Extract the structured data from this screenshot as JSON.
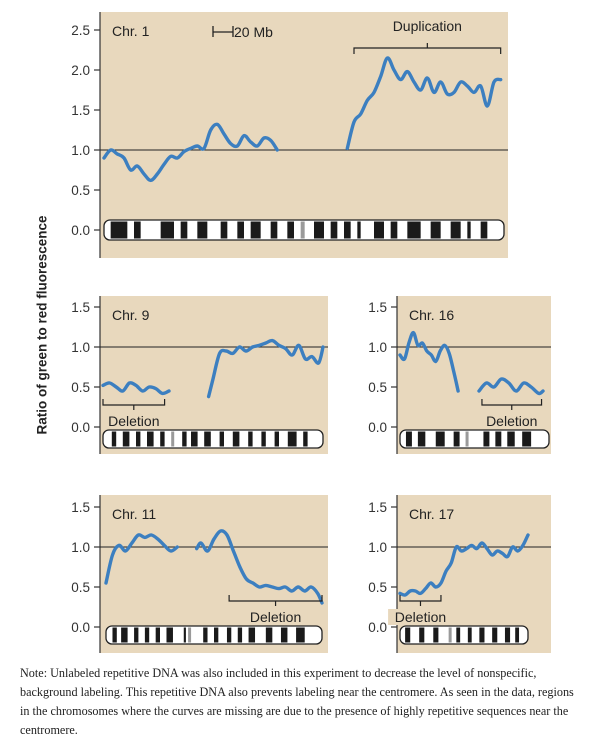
{
  "figure": {
    "ylabel": "Ratio of green to red fluorescence",
    "note": "Note: Unlabeled repetitive DNA was also included in this experiment to decrease the level of nonspecific, background labeling. This repetitive DNA also prevents labeling near the centromere. As seen in the data, regions in the chromosomes where the curves are missing are due to the presence of highly repetitive sequences near the centromere.",
    "colors": {
      "panel_bg": "#e8d8bd",
      "curve": "#3c7fc0",
      "axis": "#333333",
      "band_dark": "#1a1a1a",
      "centromere": "#9a9a9a"
    }
  },
  "chart_data": [
    {
      "type": "line",
      "title": "Chr. 1",
      "scale_label": "20 Mb",
      "annotation": "Duplication",
      "annotation_range": [
        75,
        119
      ],
      "xlim": [
        0,
        120
      ],
      "ylim": [
        0,
        2.5
      ],
      "yticks": [
        "0.0",
        "0.5",
        "1.0",
        "1.5",
        "2.0",
        "2.5"
      ],
      "reference_y": 1.0,
      "centromere": [
        52,
        73
      ],
      "centromere_band": 59,
      "bands": [
        [
          2,
          7
        ],
        [
          9,
          11
        ],
        [
          17,
          21
        ],
        [
          23,
          25
        ],
        [
          28,
          31
        ],
        [
          35,
          37
        ],
        [
          40,
          42
        ],
        [
          44,
          47
        ],
        [
          50,
          52
        ],
        [
          55,
          57
        ],
        [
          63,
          66
        ],
        [
          68,
          70
        ],
        [
          72,
          74
        ],
        [
          76,
          77
        ],
        [
          81,
          84
        ],
        [
          86,
          88
        ],
        [
          91,
          95
        ],
        [
          98,
          101
        ],
        [
          104,
          107
        ],
        [
          109,
          110
        ],
        [
          113,
          115
        ]
      ],
      "series": [
        {
          "x": [
            0,
            2,
            4,
            6,
            8,
            10,
            12,
            14,
            16,
            18,
            20,
            22,
            24,
            26,
            28,
            30,
            32,
            34,
            36,
            38,
            40,
            42,
            44,
            46,
            48,
            50,
            52
          ],
          "y": [
            0.9,
            1.0,
            0.95,
            0.9,
            0.75,
            0.8,
            0.7,
            0.62,
            0.7,
            0.82,
            0.92,
            0.9,
            0.98,
            1.02,
            1.05,
            1.02,
            1.25,
            1.32,
            1.2,
            1.08,
            1.05,
            1.18,
            1.1,
            1.05,
            1.15,
            1.12,
            1.0
          ]
        },
        {
          "x": [
            73,
            75,
            77,
            79,
            81,
            83,
            85,
            87,
            89,
            91,
            93,
            95,
            97,
            99,
            101,
            103,
            105,
            107,
            109,
            111,
            113,
            115,
            117,
            119
          ],
          "y": [
            1.02,
            1.35,
            1.45,
            1.62,
            1.72,
            1.92,
            2.15,
            2.0,
            1.88,
            1.98,
            1.85,
            1.75,
            1.9,
            1.72,
            1.85,
            1.7,
            1.72,
            1.85,
            1.8,
            1.72,
            1.8,
            1.55,
            1.85,
            1.88
          ]
        }
      ]
    },
    {
      "type": "line",
      "title": "Chr. 9",
      "annotation": "Deletion",
      "annotation_range": [
        0,
        28
      ],
      "xlim": [
        0,
        100
      ],
      "ylim": [
        0,
        1.5
      ],
      "yticks": [
        "0.0",
        "0.5",
        "1.0",
        "1.5"
      ],
      "reference_y": 1.0,
      "centromere": [
        30,
        48
      ],
      "centromere_band": 31,
      "bands": [
        [
          4,
          6
        ],
        [
          9,
          12
        ],
        [
          15,
          17
        ],
        [
          20,
          23
        ],
        [
          26,
          28
        ],
        [
          36,
          38
        ],
        [
          40,
          43
        ],
        [
          46,
          49
        ],
        [
          53,
          55
        ],
        [
          59,
          62
        ],
        [
          66,
          68
        ],
        [
          72,
          74
        ],
        [
          78,
          80
        ],
        [
          84,
          88
        ],
        [
          91,
          93
        ]
      ],
      "series": [
        {
          "x": [
            0,
            3,
            6,
            9,
            12,
            15,
            18,
            21,
            24,
            27,
            30
          ],
          "y": [
            0.52,
            0.55,
            0.5,
            0.45,
            0.55,
            0.52,
            0.45,
            0.5,
            0.48,
            0.42,
            0.45
          ]
        },
        {
          "x": [
            48,
            50,
            53,
            56,
            59,
            62,
            65,
            68,
            71,
            74,
            77,
            80,
            83,
            86,
            89,
            92,
            95,
            98,
            100
          ],
          "y": [
            0.38,
            0.6,
            0.92,
            0.95,
            0.92,
            1.0,
            0.95,
            1.0,
            1.02,
            1.05,
            1.08,
            1.02,
            0.98,
            0.9,
            1.02,
            0.85,
            0.88,
            0.8,
            1.0
          ]
        }
      ]
    },
    {
      "type": "line",
      "title": "Chr. 16",
      "annotation": "Deletion",
      "annotation_range": [
        55,
        95
      ],
      "xlim": [
        0,
        100
      ],
      "ylim": [
        0,
        1.5
      ],
      "yticks": [
        "0.0",
        "0.5",
        "1.0",
        "1.5"
      ],
      "reference_y": 1.0,
      "centromere": [
        38,
        52
      ],
      "centromere_band": 44,
      "bands": [
        [
          4,
          8
        ],
        [
          12,
          17
        ],
        [
          24,
          30
        ],
        [
          36,
          40
        ],
        [
          56,
          60
        ],
        [
          64,
          68
        ],
        [
          72,
          77
        ],
        [
          82,
          88
        ]
      ],
      "series": [
        {
          "x": [
            0,
            3,
            6,
            9,
            12,
            15,
            18,
            21,
            24,
            27,
            30,
            33,
            36,
            39
          ],
          "y": [
            0.9,
            0.85,
            1.05,
            1.18,
            1.02,
            1.05,
            0.95,
            0.9,
            0.82,
            0.95,
            1.02,
            0.92,
            0.7,
            0.45
          ]
        },
        {
          "x": [
            53,
            58,
            63,
            68,
            73,
            78,
            83,
            88,
            93,
            96
          ],
          "y": [
            0.45,
            0.55,
            0.5,
            0.6,
            0.55,
            0.45,
            0.55,
            0.5,
            0.42,
            0.45
          ]
        }
      ]
    },
    {
      "type": "line",
      "title": "Chr. 11",
      "annotation": "Deletion",
      "annotation_range": [
        57,
        100
      ],
      "xlim": [
        0,
        100
      ],
      "ylim": [
        0,
        1.5
      ],
      "yticks": [
        "0.0",
        "0.5",
        "1.0",
        "1.5"
      ],
      "reference_y": 1.0,
      "centromere": [
        33,
        42
      ],
      "centromere_band": 38,
      "bands": [
        [
          3,
          5
        ],
        [
          7,
          10
        ],
        [
          13,
          15
        ],
        [
          18,
          20
        ],
        [
          23,
          25
        ],
        [
          28,
          31
        ],
        [
          36,
          37
        ],
        [
          45,
          47
        ],
        [
          50,
          52
        ],
        [
          56,
          58
        ],
        [
          61,
          63
        ],
        [
          66,
          69
        ],
        [
          74,
          77
        ],
        [
          81,
          84
        ],
        [
          88,
          92
        ]
      ],
      "series": [
        {
          "x": [
            0,
            3,
            6,
            9,
            12,
            15,
            18,
            21,
            24,
            27,
            30,
            33
          ],
          "y": [
            0.55,
            0.9,
            1.02,
            0.95,
            1.05,
            1.15,
            1.12,
            1.15,
            1.1,
            1.02,
            0.95,
            1.0
          ]
        },
        {
          "x": [
            42,
            44,
            47,
            50,
            53,
            56,
            59,
            62,
            65,
            68,
            71,
            74,
            77,
            80,
            83,
            86,
            89,
            92,
            95,
            98,
            100
          ],
          "y": [
            0.98,
            1.05,
            0.95,
            1.1,
            1.2,
            1.15,
            0.95,
            0.75,
            0.6,
            0.55,
            0.5,
            0.52,
            0.5,
            0.48,
            0.5,
            0.45,
            0.5,
            0.45,
            0.5,
            0.42,
            0.3
          ]
        }
      ]
    },
    {
      "type": "line",
      "title": "Chr. 17",
      "annotation": "Deletion",
      "annotation_range": [
        0,
        32
      ],
      "xlim": [
        0,
        100
      ],
      "ylim": [
        0,
        1.5
      ],
      "yticks": [
        "0.0",
        "0.5",
        "1.0",
        "1.5"
      ],
      "reference_y": 1.0,
      "centromere": [
        35,
        42
      ],
      "centromere_band": 38,
      "bands": [
        [
          4,
          8
        ],
        [
          15,
          19
        ],
        [
          26,
          30
        ],
        [
          44,
          47
        ],
        [
          53,
          56
        ],
        [
          62,
          66
        ],
        [
          72,
          76
        ],
        [
          82,
          86
        ],
        [
          90,
          93
        ]
      ],
      "series": [
        {
          "x": [
            0,
            4,
            8,
            12,
            16,
            20,
            24,
            28,
            32,
            36,
            40,
            44,
            48,
            52,
            56,
            60,
            64,
            68,
            72,
            76,
            80,
            84,
            88,
            92,
            96,
            100
          ],
          "y": [
            0.42,
            0.4,
            0.45,
            0.45,
            0.42,
            0.48,
            0.55,
            0.5,
            0.55,
            0.7,
            0.8,
            1.0,
            0.95,
            0.98,
            1.02,
            0.98,
            1.05,
            0.98,
            0.9,
            0.95,
            0.92,
            0.88,
            1.0,
            0.95,
            1.02,
            1.15
          ]
        }
      ]
    }
  ]
}
